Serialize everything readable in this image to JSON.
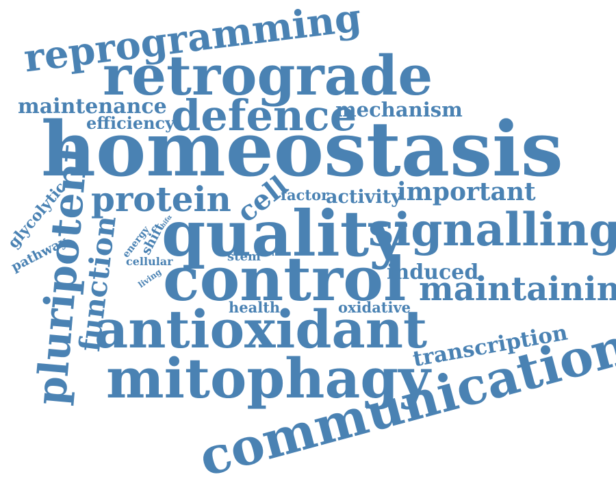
{
  "color": "#4a82b3",
  "words": [
    {
      "key": "homeostasis",
      "text": "homeostasis"
    },
    {
      "key": "retrograde",
      "text": "retrograde"
    },
    {
      "key": "reprogramming",
      "text": "reprogramming"
    },
    {
      "key": "defence",
      "text": "defence"
    },
    {
      "key": "maintenance",
      "text": "maintenance"
    },
    {
      "key": "mechanism",
      "text": "mechanism"
    },
    {
      "key": "efficiency",
      "text": "efficiency"
    },
    {
      "key": "protein",
      "text": "protein"
    },
    {
      "key": "cell",
      "text": "cell"
    },
    {
      "key": "factor",
      "text": "factor"
    },
    {
      "key": "activity",
      "text": "activity"
    },
    {
      "key": "important",
      "text": "important"
    },
    {
      "key": "quality",
      "text": "quality"
    },
    {
      "key": "signalling",
      "text": "signalling"
    },
    {
      "key": "control",
      "text": "control"
    },
    {
      "key": "induced",
      "text": "induced"
    },
    {
      "key": "maintaining",
      "text": "maintaining"
    },
    {
      "key": "antioxidant",
      "text": "antioxidant"
    },
    {
      "key": "health",
      "text": "health"
    },
    {
      "key": "oxidative",
      "text": "oxidative"
    },
    {
      "key": "transcription",
      "text": "transcription"
    },
    {
      "key": "mitophagy",
      "text": "mitophagy"
    },
    {
      "key": "communication",
      "text": "communication"
    },
    {
      "key": "pluripotent",
      "text": "pluripotent"
    },
    {
      "key": "function",
      "text": "function"
    },
    {
      "key": "glycolytic",
      "text": "glycolytic"
    },
    {
      "key": "pathway",
      "text": "pathway"
    },
    {
      "key": "energy",
      "text": "energy"
    },
    {
      "key": "shift",
      "text": "shift"
    },
    {
      "key": "hif",
      "text": "hifα"
    },
    {
      "key": "cellular",
      "text": "cellular"
    },
    {
      "key": "living",
      "text": "living"
    },
    {
      "key": "stem",
      "text": "stem"
    },
    {
      "key": "role",
      "text": "role"
    }
  ]
}
